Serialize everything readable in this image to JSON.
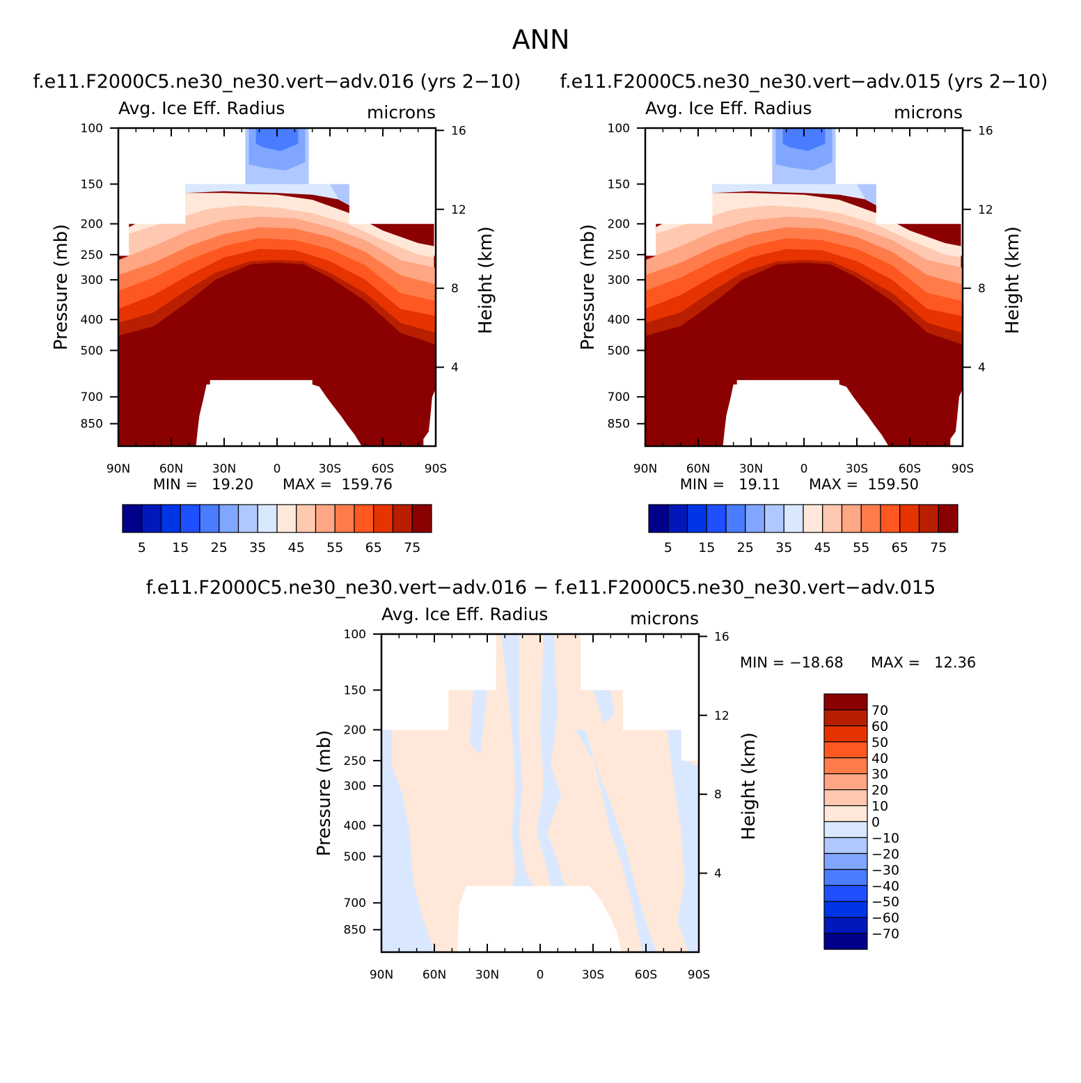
{
  "page_title": "ANN",
  "panels": [
    {
      "case_title": "f.e11.F2000C5.ne30_ne30.vert−adv.016 (yrs 2−10)",
      "variable": "Avg. Ice Eff. Radius",
      "units": "microns",
      "min_label": "MIN =   19.20",
      "max_label": "MAX =  159.76"
    },
    {
      "case_title": "f.e11.F2000C5.ne30_ne30.vert−adv.015 (yrs 2−10)",
      "variable": "Avg. Ice Eff. Radius",
      "units": "microns",
      "min_label": "MIN =   19.11",
      "max_label": "MAX =  159.50"
    },
    {
      "case_title": "f.e11.F2000C5.ne30_ne30.vert−adv.016 − f.e11.F2000C5.ne30_ne30.vert−adv.015",
      "variable": "Avg. Ice Eff. Radius",
      "units": "microns",
      "min_label": "MIN = −18.68",
      "max_label": "MAX =   12.36"
    }
  ],
  "colors": {
    "abs_levels": [
      "#00008b",
      "#0018bb",
      "#0035e6",
      "#1f4fff",
      "#4a7cff",
      "#80a6ff",
      "#b0c8ff",
      "#d9e8ff",
      "#ffe8d9",
      "#ffc8b0",
      "#ffa684",
      "#ff7c4a",
      "#ff5720",
      "#e63300",
      "#b81e00",
      "#8b0000"
    ],
    "diff_levels": [
      "#00008b",
      "#0018bb",
      "#0035e6",
      "#1f4fff",
      "#4a7cff",
      "#80a6ff",
      "#b0c8ff",
      "#d9e8ff",
      "#ffe8d9",
      "#ffc8b0",
      "#ffa684",
      "#ff7c4a",
      "#e63300",
      "#b81e00",
      "#8b0000"
    ]
  },
  "chart_data": [
    {
      "type": "heatmap",
      "title": "f.e11.F2000C5.ne30_ne30.vert−adv.016 (yrs 2−10)",
      "subtitle": "Avg. Ice Eff. Radius",
      "units": "microns",
      "xlabel": "",
      "ylabel": "Pressure (mb)",
      "ylabel_right": "Height (km)",
      "x_ticks": [
        "90N",
        "60N",
        "30N",
        "0",
        "30S",
        "60S",
        "90S"
      ],
      "y_ticks": [
        100,
        150,
        200,
        250,
        300,
        400,
        500,
        700,
        850
      ],
      "y_right_ticks": [
        16,
        12,
        8,
        4
      ],
      "xlim": [
        90,
        -90
      ],
      "ylim": [
        1000,
        100
      ],
      "y_scale": "log",
      "min": 19.2,
      "max": 159.76,
      "colorbar_labels": [
        5,
        15,
        25,
        35,
        45,
        55,
        65,
        75
      ],
      "colorbar_levels": [
        5,
        10,
        15,
        20,
        25,
        30,
        35,
        40,
        45,
        50,
        55,
        60,
        65,
        70,
        75
      ]
    },
    {
      "type": "heatmap",
      "title": "f.e11.F2000C5.ne30_ne30.vert−adv.015 (yrs 2−10)",
      "subtitle": "Avg. Ice Eff. Radius",
      "units": "microns",
      "xlabel": "",
      "ylabel": "Pressure (mb)",
      "ylabel_right": "Height (km)",
      "x_ticks": [
        "90N",
        "60N",
        "30N",
        "0",
        "30S",
        "60S",
        "90S"
      ],
      "y_ticks": [
        100,
        150,
        200,
        250,
        300,
        400,
        500,
        700,
        850
      ],
      "y_right_ticks": [
        16,
        12,
        8,
        4
      ],
      "xlim": [
        90,
        -90
      ],
      "ylim": [
        1000,
        100
      ],
      "y_scale": "log",
      "min": 19.11,
      "max": 159.5,
      "colorbar_labels": [
        5,
        15,
        25,
        35,
        45,
        55,
        65,
        75
      ],
      "colorbar_levels": [
        5,
        10,
        15,
        20,
        25,
        30,
        35,
        40,
        45,
        50,
        55,
        60,
        65,
        70,
        75
      ]
    },
    {
      "type": "heatmap",
      "title": "f.e11.F2000C5.ne30_ne30.vert−adv.016 − f.e11.F2000C5.ne30_ne30.vert−adv.015",
      "subtitle": "Avg. Ice Eff. Radius",
      "units": "microns",
      "xlabel": "",
      "ylabel": "Pressure (mb)",
      "ylabel_right": "Height (km)",
      "x_ticks": [
        "90N",
        "60N",
        "30N",
        "0",
        "30S",
        "60S",
        "90S"
      ],
      "y_ticks": [
        100,
        150,
        200,
        250,
        300,
        400,
        500,
        700,
        850
      ],
      "y_right_ticks": [
        16,
        12,
        8,
        4
      ],
      "xlim": [
        90,
        -90
      ],
      "ylim": [
        1000,
        100
      ],
      "y_scale": "log",
      "min": -18.68,
      "max": 12.36,
      "colorbar_labels": [
        70,
        60,
        50,
        40,
        30,
        20,
        10,
        0,
        -10,
        -20,
        -30,
        -40,
        -50,
        -60,
        -70
      ],
      "colorbar_levels": [
        70,
        60,
        50,
        40,
        30,
        20,
        10,
        0,
        -10,
        -20,
        -30,
        -40,
        -50,
        -60,
        -70
      ]
    }
  ]
}
